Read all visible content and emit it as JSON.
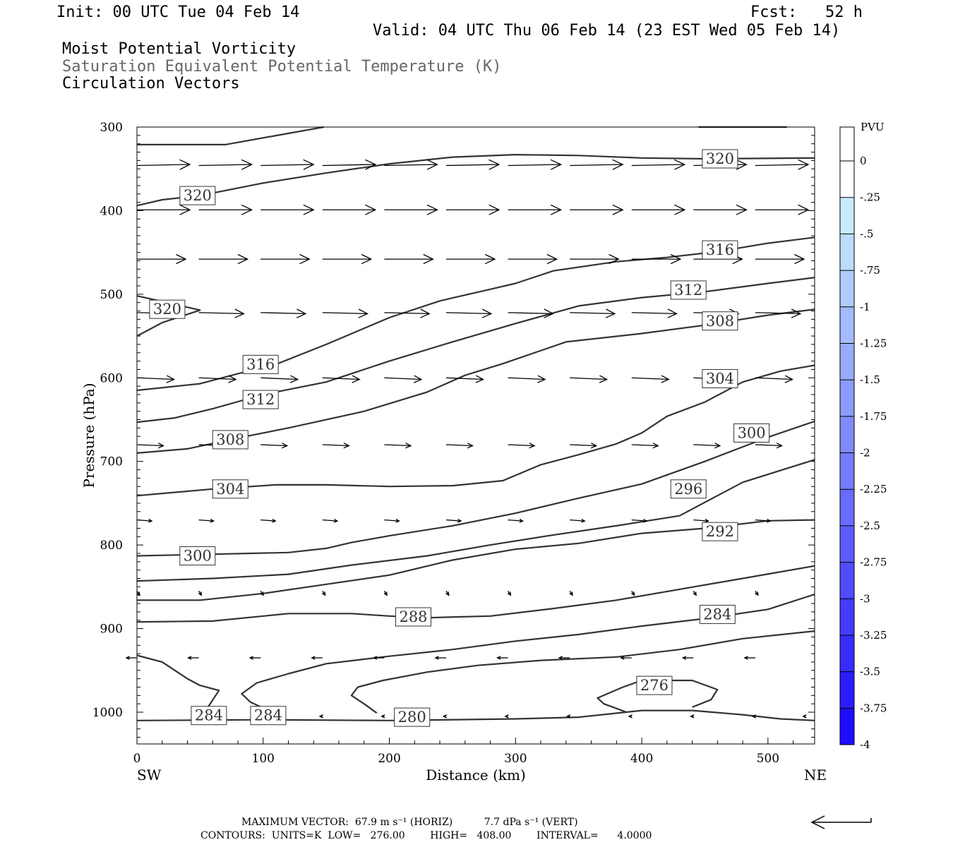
{
  "header": {
    "init": "Init: 00 UTC Tue 04 Feb 14",
    "fcst": "Fcst:   52 h",
    "valid": "Valid: 04 UTC Thu 06 Feb 14 (23 EST Wed 05 Feb 14)",
    "field1": "Moist Potential Vorticity",
    "field2": "Saturation Equivalent Potential Temperature (K)",
    "field3": "Circulation Vectors"
  },
  "colorbar": {
    "title": "PVU",
    "labels": [
      "0",
      "-.25",
      "-.5",
      "-.75",
      "-1",
      "-1.25",
      "-1.5",
      "-1.75",
      "-2",
      "-2.25",
      "-2.5",
      "-2.75",
      "-3",
      "-3.25",
      "-3.5",
      "-3.75",
      "-4"
    ],
    "colors": [
      "#ffffff",
      "#c8ecfc",
      "#bcdcfc",
      "#b0ccfc",
      "#a4bcfc",
      "#98acfc",
      "#8c9cfc",
      "#808cfc",
      "#747cfc",
      "#686cfc",
      "#5c5cfc",
      "#504cfc",
      "#443cfc",
      "#382cfc",
      "#2c1cfc",
      "#200cfc",
      "#1400fc"
    ]
  },
  "footer": {
    "max_vector_line": "MAXIMUM VECTOR:  67.9 m s⁻¹ (HORIZ)          7.7 dPa s⁻¹ (VERT)",
    "contours_line": "CONTOURS:  UNITS=K  LOW=   276.00        HIGH=   408.00        INTERVAL=      4.0000"
  },
  "chart_data": {
    "type": "contour",
    "xlabel": "Distance (km)",
    "ylabel": "Pressure (hPa)",
    "xlim": [
      0,
      537
    ],
    "ylim": [
      1038,
      300
    ],
    "x_ticks": [
      0,
      100,
      200,
      300,
      400,
      500
    ],
    "y_ticks": [
      300,
      400,
      500,
      600,
      700,
      800,
      900,
      1000
    ],
    "left_endpoint": "SW",
    "right_endpoint": "NE",
    "contour_color": "#333333",
    "contours": [
      {
        "level": "320",
        "points": [
          [
            0,
            321
          ],
          [
            70,
            321
          ],
          [
            148,
            300
          ]
        ]
      },
      {
        "level": "",
        "points": [
          [
            445,
            300
          ],
          [
            515,
            300
          ]
        ]
      },
      {
        "level": "320",
        "points": [
          [
            0,
            394
          ],
          [
            20,
            387
          ],
          [
            50,
            382
          ],
          [
            100,
            367
          ],
          [
            150,
            355
          ],
          [
            200,
            344
          ],
          [
            250,
            336
          ],
          [
            300,
            333
          ],
          [
            350,
            334
          ],
          [
            400,
            337
          ],
          [
            450,
            338
          ],
          [
            537,
            337
          ]
        ]
      },
      {
        "level": "320",
        "points": [
          [
            0,
            502
          ],
          [
            15,
            507
          ],
          [
            30,
            512
          ],
          [
            50,
            519
          ],
          [
            40,
            524
          ],
          [
            20,
            534
          ],
          [
            0,
            550
          ]
        ]
      },
      {
        "level": "316",
        "points": [
          [
            0,
            615
          ],
          [
            50,
            607
          ],
          [
            80,
            595
          ],
          [
            110,
            584
          ],
          [
            150,
            560
          ],
          [
            200,
            528
          ],
          [
            240,
            508
          ],
          [
            280,
            494
          ],
          [
            300,
            487
          ],
          [
            330,
            472
          ],
          [
            380,
            461
          ],
          [
            420,
            456
          ],
          [
            460,
            449
          ],
          [
            500,
            439
          ],
          [
            537,
            432
          ]
        ]
      },
      {
        "level": "312",
        "points": [
          [
            0,
            653
          ],
          [
            30,
            648
          ],
          [
            60,
            637
          ],
          [
            100,
            620
          ],
          [
            150,
            605
          ],
          [
            200,
            580
          ],
          [
            250,
            557
          ],
          [
            300,
            535
          ],
          [
            350,
            514
          ],
          [
            400,
            504
          ],
          [
            450,
            497
          ],
          [
            500,
            487
          ],
          [
            537,
            480
          ]
        ]
      },
      {
        "level": "308",
        "points": [
          [
            0,
            690
          ],
          [
            40,
            685
          ],
          [
            80,
            672
          ],
          [
            120,
            660
          ],
          [
            180,
            640
          ],
          [
            230,
            617
          ],
          [
            260,
            597
          ],
          [
            290,
            583
          ],
          [
            340,
            557
          ],
          [
            400,
            547
          ],
          [
            450,
            537
          ],
          [
            500,
            525
          ],
          [
            537,
            518
          ]
        ]
      },
      {
        "level": "304",
        "points": [
          [
            0,
            741
          ],
          [
            60,
            733
          ],
          [
            110,
            728
          ],
          [
            150,
            728
          ],
          [
            200,
            730
          ],
          [
            250,
            729
          ],
          [
            290,
            723
          ],
          [
            320,
            704
          ],
          [
            350,
            692
          ],
          [
            380,
            679
          ],
          [
            400,
            666
          ],
          [
            420,
            646
          ],
          [
            450,
            629
          ],
          [
            480,
            605
          ],
          [
            510,
            592
          ],
          [
            537,
            585
          ]
        ]
      },
      {
        "level": "300",
        "points": [
          [
            0,
            813
          ],
          [
            60,
            811
          ],
          [
            120,
            809
          ],
          [
            150,
            804
          ],
          [
            170,
            797
          ],
          [
            200,
            789
          ],
          [
            250,
            777
          ],
          [
            300,
            762
          ],
          [
            350,
            744
          ],
          [
            400,
            727
          ],
          [
            450,
            700
          ],
          [
            500,
            671
          ],
          [
            537,
            652
          ]
        ]
      },
      {
        "level": "296",
        "points": [
          [
            0,
            843
          ],
          [
            60,
            840
          ],
          [
            120,
            835
          ],
          [
            170,
            824
          ],
          [
            230,
            813
          ],
          [
            280,
            800
          ],
          [
            330,
            788
          ],
          [
            380,
            777
          ],
          [
            430,
            765
          ],
          [
            480,
            725
          ],
          [
            537,
            698
          ]
        ]
      },
      {
        "level": "292",
        "points": [
          [
            0,
            866
          ],
          [
            50,
            866
          ],
          [
            100,
            858
          ],
          [
            150,
            847
          ],
          [
            200,
            836
          ],
          [
            250,
            818
          ],
          [
            300,
            805
          ],
          [
            350,
            798
          ],
          [
            400,
            786
          ],
          [
            450,
            780
          ],
          [
            500,
            771
          ],
          [
            537,
            770
          ]
        ]
      },
      {
        "level": "288",
        "points": [
          [
            0,
            892
          ],
          [
            60,
            891
          ],
          [
            120,
            882
          ],
          [
            170,
            882
          ],
          [
            200,
            885
          ],
          [
            230,
            887
          ],
          [
            280,
            885
          ],
          [
            330,
            876
          ],
          [
            380,
            866
          ],
          [
            430,
            853
          ],
          [
            480,
            840
          ],
          [
            537,
            825
          ]
        ]
      },
      {
        "level": "284",
        "points": [
          [
            0,
            932
          ],
          [
            20,
            940
          ],
          [
            40,
            960
          ],
          [
            50,
            968
          ],
          [
            65,
            974
          ],
          [
            55,
            997
          ]
        ]
      },
      {
        "level": "284",
        "points": [
          [
            100,
            995
          ],
          [
            90,
            988
          ],
          [
            83,
            978
          ],
          [
            95,
            965
          ],
          [
            120,
            954
          ],
          [
            150,
            942
          ],
          [
            200,
            933
          ],
          [
            250,
            925
          ],
          [
            300,
            915
          ],
          [
            350,
            907
          ],
          [
            400,
            897
          ],
          [
            450,
            888
          ],
          [
            500,
            877
          ],
          [
            537,
            859
          ]
        ]
      },
      {
        "level": "280",
        "points": [
          [
            190,
            1001
          ],
          [
            180,
            990
          ],
          [
            170,
            980
          ],
          [
            175,
            970
          ],
          [
            195,
            962
          ],
          [
            230,
            952
          ],
          [
            270,
            944
          ],
          [
            320,
            938
          ],
          [
            380,
            934
          ],
          [
            430,
            925
          ],
          [
            480,
            912
          ],
          [
            537,
            903
          ]
        ]
      },
      {
        "level": "276",
        "points": [
          [
            388,
            1000
          ],
          [
            370,
            990
          ],
          [
            365,
            983
          ],
          [
            385,
            970
          ],
          [
            400,
            962
          ],
          [
            440,
            962
          ],
          [
            460,
            973
          ],
          [
            455,
            985
          ],
          [
            440,
            994
          ]
        ]
      },
      {
        "level": "",
        "points": [
          [
            0,
            1010
          ],
          [
            100,
            1009
          ],
          [
            200,
            1010
          ],
          [
            300,
            1008
          ],
          [
            350,
            1006
          ],
          [
            400,
            998
          ],
          [
            440,
            998
          ],
          [
            480,
            1003
          ],
          [
            510,
            1008
          ],
          [
            537,
            1010
          ]
        ]
      }
    ],
    "contour_labels": [
      {
        "text": "320",
        "x": 48,
        "y": 382
      },
      {
        "text": "320",
        "x": 24,
        "y": 518
      },
      {
        "text": "320",
        "x": 462,
        "y": 338
      },
      {
        "text": "316",
        "x": 98,
        "y": 584
      },
      {
        "text": "316",
        "x": 462,
        "y": 447
      },
      {
        "text": "312",
        "x": 98,
        "y": 626
      },
      {
        "text": "312",
        "x": 437,
        "y": 495
      },
      {
        "text": "308",
        "x": 74,
        "y": 674
      },
      {
        "text": "308",
        "x": 462,
        "y": 532
      },
      {
        "text": "304",
        "x": 74,
        "y": 733
      },
      {
        "text": "304",
        "x": 462,
        "y": 601
      },
      {
        "text": "300",
        "x": 48,
        "y": 813
      },
      {
        "text": "300",
        "x": 487,
        "y": 666
      },
      {
        "text": "296",
        "x": 437,
        "y": 733
      },
      {
        "text": "292",
        "x": 462,
        "y": 784
      },
      {
        "text": "288",
        "x": 219,
        "y": 886
      },
      {
        "text": "284",
        "x": 460,
        "y": 883
      },
      {
        "text": "284",
        "x": 57,
        "y": 1004
      },
      {
        "text": "284",
        "x": 104,
        "y": 1004
      },
      {
        "text": "280",
        "x": 218,
        "y": 1006
      },
      {
        "text": "276",
        "x": 410,
        "y": 968
      }
    ],
    "vectors": [
      {
        "p": 346,
        "x": [
          0,
          49,
          98,
          147,
          196,
          245,
          294,
          343,
          392,
          441,
          490
        ],
        "u": 1.0,
        "w": -0.02
      },
      {
        "p": 399,
        "x": [
          0,
          49,
          98,
          147,
          196,
          245,
          294,
          343,
          392,
          441,
          490
        ],
        "u": 1.0,
        "w": 0.0
      },
      {
        "p": 458,
        "x": [
          0,
          49,
          98,
          147,
          196,
          245,
          294,
          343,
          392,
          441,
          490
        ],
        "u": 0.92,
        "w": 0.0
      },
      {
        "p": 522,
        "x": [
          0,
          49,
          98,
          147,
          196,
          245,
          294,
          343,
          392,
          441,
          490
        ],
        "u": 0.85,
        "w": 0.02
      },
      {
        "p": 600,
        "x": [
          0,
          49,
          98,
          147,
          196,
          245,
          294,
          343,
          392,
          441,
          490
        ],
        "u": 0.7,
        "w": 0.03
      },
      {
        "p": 680,
        "x": [
          0,
          49,
          98,
          147,
          196,
          245,
          294,
          343,
          392,
          441,
          490
        ],
        "u": 0.5,
        "w": 0.02
      },
      {
        "p": 770,
        "x": [
          0,
          49,
          98,
          147,
          196,
          245,
          294,
          343,
          392,
          441,
          490
        ],
        "u": 0.28,
        "w": 0.02
      },
      {
        "p": 855,
        "x": [
          0,
          49,
          98,
          147,
          196,
          245,
          294,
          343,
          392,
          441,
          490
        ],
        "u": 0.05,
        "w": 0.08
      },
      {
        "p": 935,
        "x": [
          0,
          49,
          98,
          147,
          196,
          245,
          294,
          343,
          392,
          441,
          490
        ],
        "u": -0.2,
        "w": 0.0
      },
      {
        "p": 1005,
        "x": [
          49,
          98,
          147,
          196,
          245,
          294,
          343,
          392,
          441,
          490,
          530
        ],
        "u": -0.05,
        "w": 0.0
      }
    ]
  }
}
